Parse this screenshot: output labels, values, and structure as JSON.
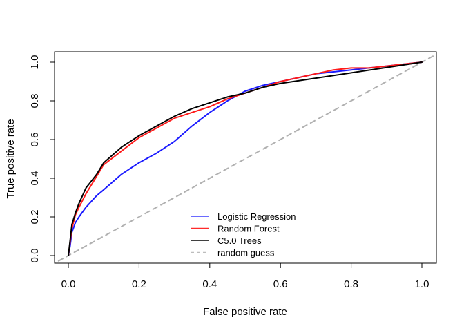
{
  "chart_data": {
    "type": "line",
    "title": "",
    "xlabel": "False positive rate",
    "ylabel": "True positive rate",
    "xlim": [
      0,
      1
    ],
    "ylim": [
      0,
      1
    ],
    "xticks": [
      "0.0",
      "0.2",
      "0.4",
      "0.6",
      "0.8",
      "1.0"
    ],
    "yticks": [
      "0.0",
      "0.2",
      "0.4",
      "0.6",
      "0.8",
      "1.0"
    ],
    "grid": false,
    "legend": {
      "placement": "bottom-center",
      "entries": [
        {
          "label": "Logistic Regression",
          "color": "#3a3aff",
          "style": "solid"
        },
        {
          "label": "Random Forest",
          "color": "#ff2a2a",
          "style": "solid"
        },
        {
          "label": "C5.0 Trees",
          "color": "#000000",
          "style": "solid"
        },
        {
          "label": "random guess",
          "color": "#bdbdbd",
          "style": "dashed"
        }
      ]
    },
    "series": [
      {
        "name": "Logistic Regression",
        "color": "#1a1aff",
        "style": "solid",
        "points": [
          [
            0,
            0
          ],
          [
            0.005,
            0.05
          ],
          [
            0.01,
            0.12
          ],
          [
            0.02,
            0.17
          ],
          [
            0.03,
            0.2
          ],
          [
            0.05,
            0.25
          ],
          [
            0.08,
            0.31
          ],
          [
            0.1,
            0.34
          ],
          [
            0.15,
            0.42
          ],
          [
            0.2,
            0.48
          ],
          [
            0.25,
            0.53
          ],
          [
            0.3,
            0.59
          ],
          [
            0.35,
            0.67
          ],
          [
            0.4,
            0.74
          ],
          [
            0.45,
            0.8
          ],
          [
            0.5,
            0.85
          ],
          [
            0.55,
            0.88
          ],
          [
            0.6,
            0.9
          ],
          [
            0.65,
            0.92
          ],
          [
            0.7,
            0.94
          ],
          [
            0.75,
            0.95
          ],
          [
            0.8,
            0.96
          ],
          [
            0.85,
            0.97
          ],
          [
            0.9,
            0.98
          ],
          [
            0.95,
            0.99
          ],
          [
            1,
            1
          ]
        ]
      },
      {
        "name": "Random Forest",
        "color": "#ff1a1a",
        "style": "solid",
        "points": [
          [
            0,
            0
          ],
          [
            0.005,
            0.07
          ],
          [
            0.01,
            0.14
          ],
          [
            0.02,
            0.21
          ],
          [
            0.03,
            0.25
          ],
          [
            0.05,
            0.32
          ],
          [
            0.08,
            0.41
          ],
          [
            0.1,
            0.47
          ],
          [
            0.15,
            0.54
          ],
          [
            0.2,
            0.61
          ],
          [
            0.25,
            0.66
          ],
          [
            0.3,
            0.71
          ],
          [
            0.35,
            0.74
          ],
          [
            0.4,
            0.77
          ],
          [
            0.45,
            0.81
          ],
          [
            0.5,
            0.84
          ],
          [
            0.55,
            0.87
          ],
          [
            0.6,
            0.9
          ],
          [
            0.65,
            0.92
          ],
          [
            0.7,
            0.94
          ],
          [
            0.75,
            0.96
          ],
          [
            0.8,
            0.97
          ],
          [
            0.85,
            0.97
          ],
          [
            0.9,
            0.98
          ],
          [
            0.95,
            0.99
          ],
          [
            1,
            1
          ]
        ]
      },
      {
        "name": "C5.0 Trees",
        "color": "#000000",
        "style": "solid",
        "points": [
          [
            0,
            0
          ],
          [
            0.005,
            0.08
          ],
          [
            0.01,
            0.16
          ],
          [
            0.02,
            0.22
          ],
          [
            0.03,
            0.27
          ],
          [
            0.05,
            0.35
          ],
          [
            0.08,
            0.42
          ],
          [
            0.1,
            0.48
          ],
          [
            0.15,
            0.56
          ],
          [
            0.2,
            0.62
          ],
          [
            0.25,
            0.67
          ],
          [
            0.3,
            0.72
          ],
          [
            0.35,
            0.76
          ],
          [
            0.4,
            0.79
          ],
          [
            0.45,
            0.82
          ],
          [
            0.5,
            0.84
          ],
          [
            0.55,
            0.87
          ],
          [
            0.6,
            0.89
          ],
          [
            1,
            1
          ]
        ]
      },
      {
        "name": "random guess",
        "color": "#b0b0b0",
        "style": "dashed",
        "points": [
          [
            -0.05,
            -0.05
          ],
          [
            1.05,
            1.05
          ]
        ]
      }
    ]
  }
}
